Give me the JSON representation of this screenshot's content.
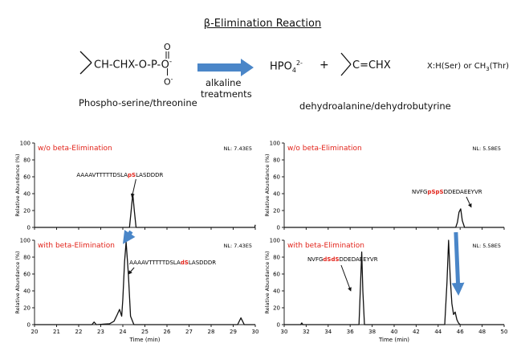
{
  "title": "β-Elimination Reaction",
  "scheme": {
    "reactant_formula": "CH-CHX-O-P-O",
    "reactant_charge": "-",
    "reactant_o_top": "O",
    "reactant_o_bottom": "O",
    "reactant_o_bottom_charge": "-",
    "reactant_name": "Phospho-serine/threonine",
    "arrow_label_line1": "alkaline",
    "arrow_label_line2": "treatments",
    "product1_base": "HPO",
    "product1_sub": "4",
    "product1_sup": "2-",
    "plus": "+",
    "product2_formula": "C=CHX",
    "product_name": "dehydroalanine/dehydrobutyrine",
    "x_note_a": "X:H(Ser) or CH",
    "x_note_sub": "3",
    "x_note_b": "(Thr)",
    "colors": {
      "arrow": "#4a86c8",
      "highlight": "#e2231a"
    }
  },
  "chart_data": [
    {
      "type": "line",
      "panel": "top-left",
      "label": "w/o beta-Elimination",
      "nl": "NL: 7.43E5",
      "ylabel": "Relative Abundance (%)",
      "xlim": [
        20,
        30
      ],
      "ylim": [
        0,
        100
      ],
      "xticks": [
        "20",
        "21",
        "22",
        "23",
        "24",
        "25",
        "26",
        "27",
        "28",
        "29",
        "30"
      ],
      "yticks": [
        "0",
        "20",
        "40",
        "60",
        "80",
        "100"
      ],
      "peptide": {
        "pre": "AAAAVTTTTTDSLA",
        "mod": "pS",
        "post": "LASDDDR",
        "x": 24.45
      },
      "x": [
        20,
        24.3,
        24.38,
        24.45,
        24.52,
        24.6,
        29.98,
        30
      ],
      "y": [
        0,
        0,
        20,
        40,
        20,
        0,
        0,
        3
      ]
    },
    {
      "type": "line",
      "panel": "bottom-left",
      "label": "with beta-Elimination",
      "nl": "NL: 7.43E5",
      "ylabel": "Relative Abundance (%)",
      "xlabel": "Time (min)",
      "xlim": [
        20,
        30
      ],
      "ylim": [
        0,
        100
      ],
      "xticks": [
        "20",
        "21",
        "22",
        "23",
        "24",
        "25",
        "26",
        "27",
        "28",
        "29",
        "30"
      ],
      "yticks": [
        "0",
        "20",
        "40",
        "60",
        "80",
        "100"
      ],
      "peptide": {
        "pre": "AAAAVTTTTTDSLA",
        "mod": "dS",
        "post": "LASDDDR",
        "x": 24.15
      },
      "x": [
        20,
        22.6,
        22.7,
        22.8,
        23.4,
        23.6,
        23.75,
        23.85,
        23.95,
        24.0,
        24.08,
        24.15,
        24.25,
        24.35,
        24.5,
        25,
        29.2,
        29.35,
        29.5,
        30
      ],
      "y": [
        0,
        0,
        3,
        0,
        1,
        4,
        12,
        18,
        10,
        30,
        75,
        98,
        60,
        10,
        0,
        0,
        0,
        8,
        0,
        0
      ]
    },
    {
      "type": "line",
      "panel": "top-right",
      "label": "w/o beta-Elimination",
      "nl": "NL: 5.58E5",
      "ylabel": "Relative Abundance (%)",
      "xlim": [
        30,
        50
      ],
      "ylim": [
        0,
        100
      ],
      "xticks": [
        "30",
        "32",
        "34",
        "36",
        "38",
        "40",
        "42",
        "44",
        "46",
        "48",
        "50"
      ],
      "yticks": [
        "0",
        "20",
        "40",
        "60",
        "80",
        "100"
      ],
      "peptide": {
        "pre": "NVFG",
        "mod": "pSpS",
        "post": "DDEDAEEYVR",
        "x": 45.4
      },
      "x": [
        30,
        45.6,
        45.75,
        45.9,
        46.05,
        46.2,
        46.4,
        50
      ],
      "y": [
        0,
        0,
        6,
        18,
        22,
        8,
        0,
        0
      ]
    },
    {
      "type": "line",
      "panel": "bottom-right",
      "label": "with beta-Elimination",
      "nl": "NL: 5.58E5",
      "ylabel": "Relative Abundance (%)",
      "xlabel": "Time (min)",
      "xlim": [
        30,
        50
      ],
      "ylim": [
        0,
        100
      ],
      "xticks": [
        "30",
        "32",
        "34",
        "36",
        "38",
        "40",
        "42",
        "44",
        "46",
        "48",
        "50"
      ],
      "yticks": [
        "0",
        "20",
        "40",
        "60",
        "80",
        "100"
      ],
      "peptide": {
        "pre": "NVFG",
        "mod": "dSdS",
        "post": "DDEDAEEYVR",
        "x": 36.2
      },
      "x": [
        30,
        31.5,
        31.6,
        31.7,
        36.8,
        36.95,
        37.05,
        37.15,
        37.3,
        44.6,
        44.8,
        44.95,
        45.1,
        45.25,
        45.4,
        45.55,
        45.7,
        45.85,
        46.0,
        50
      ],
      "y": [
        0,
        0,
        2,
        0,
        0,
        50,
        86,
        40,
        0,
        0,
        50,
        100,
        55,
        25,
        12,
        15,
        6,
        2,
        0,
        0
      ]
    }
  ]
}
